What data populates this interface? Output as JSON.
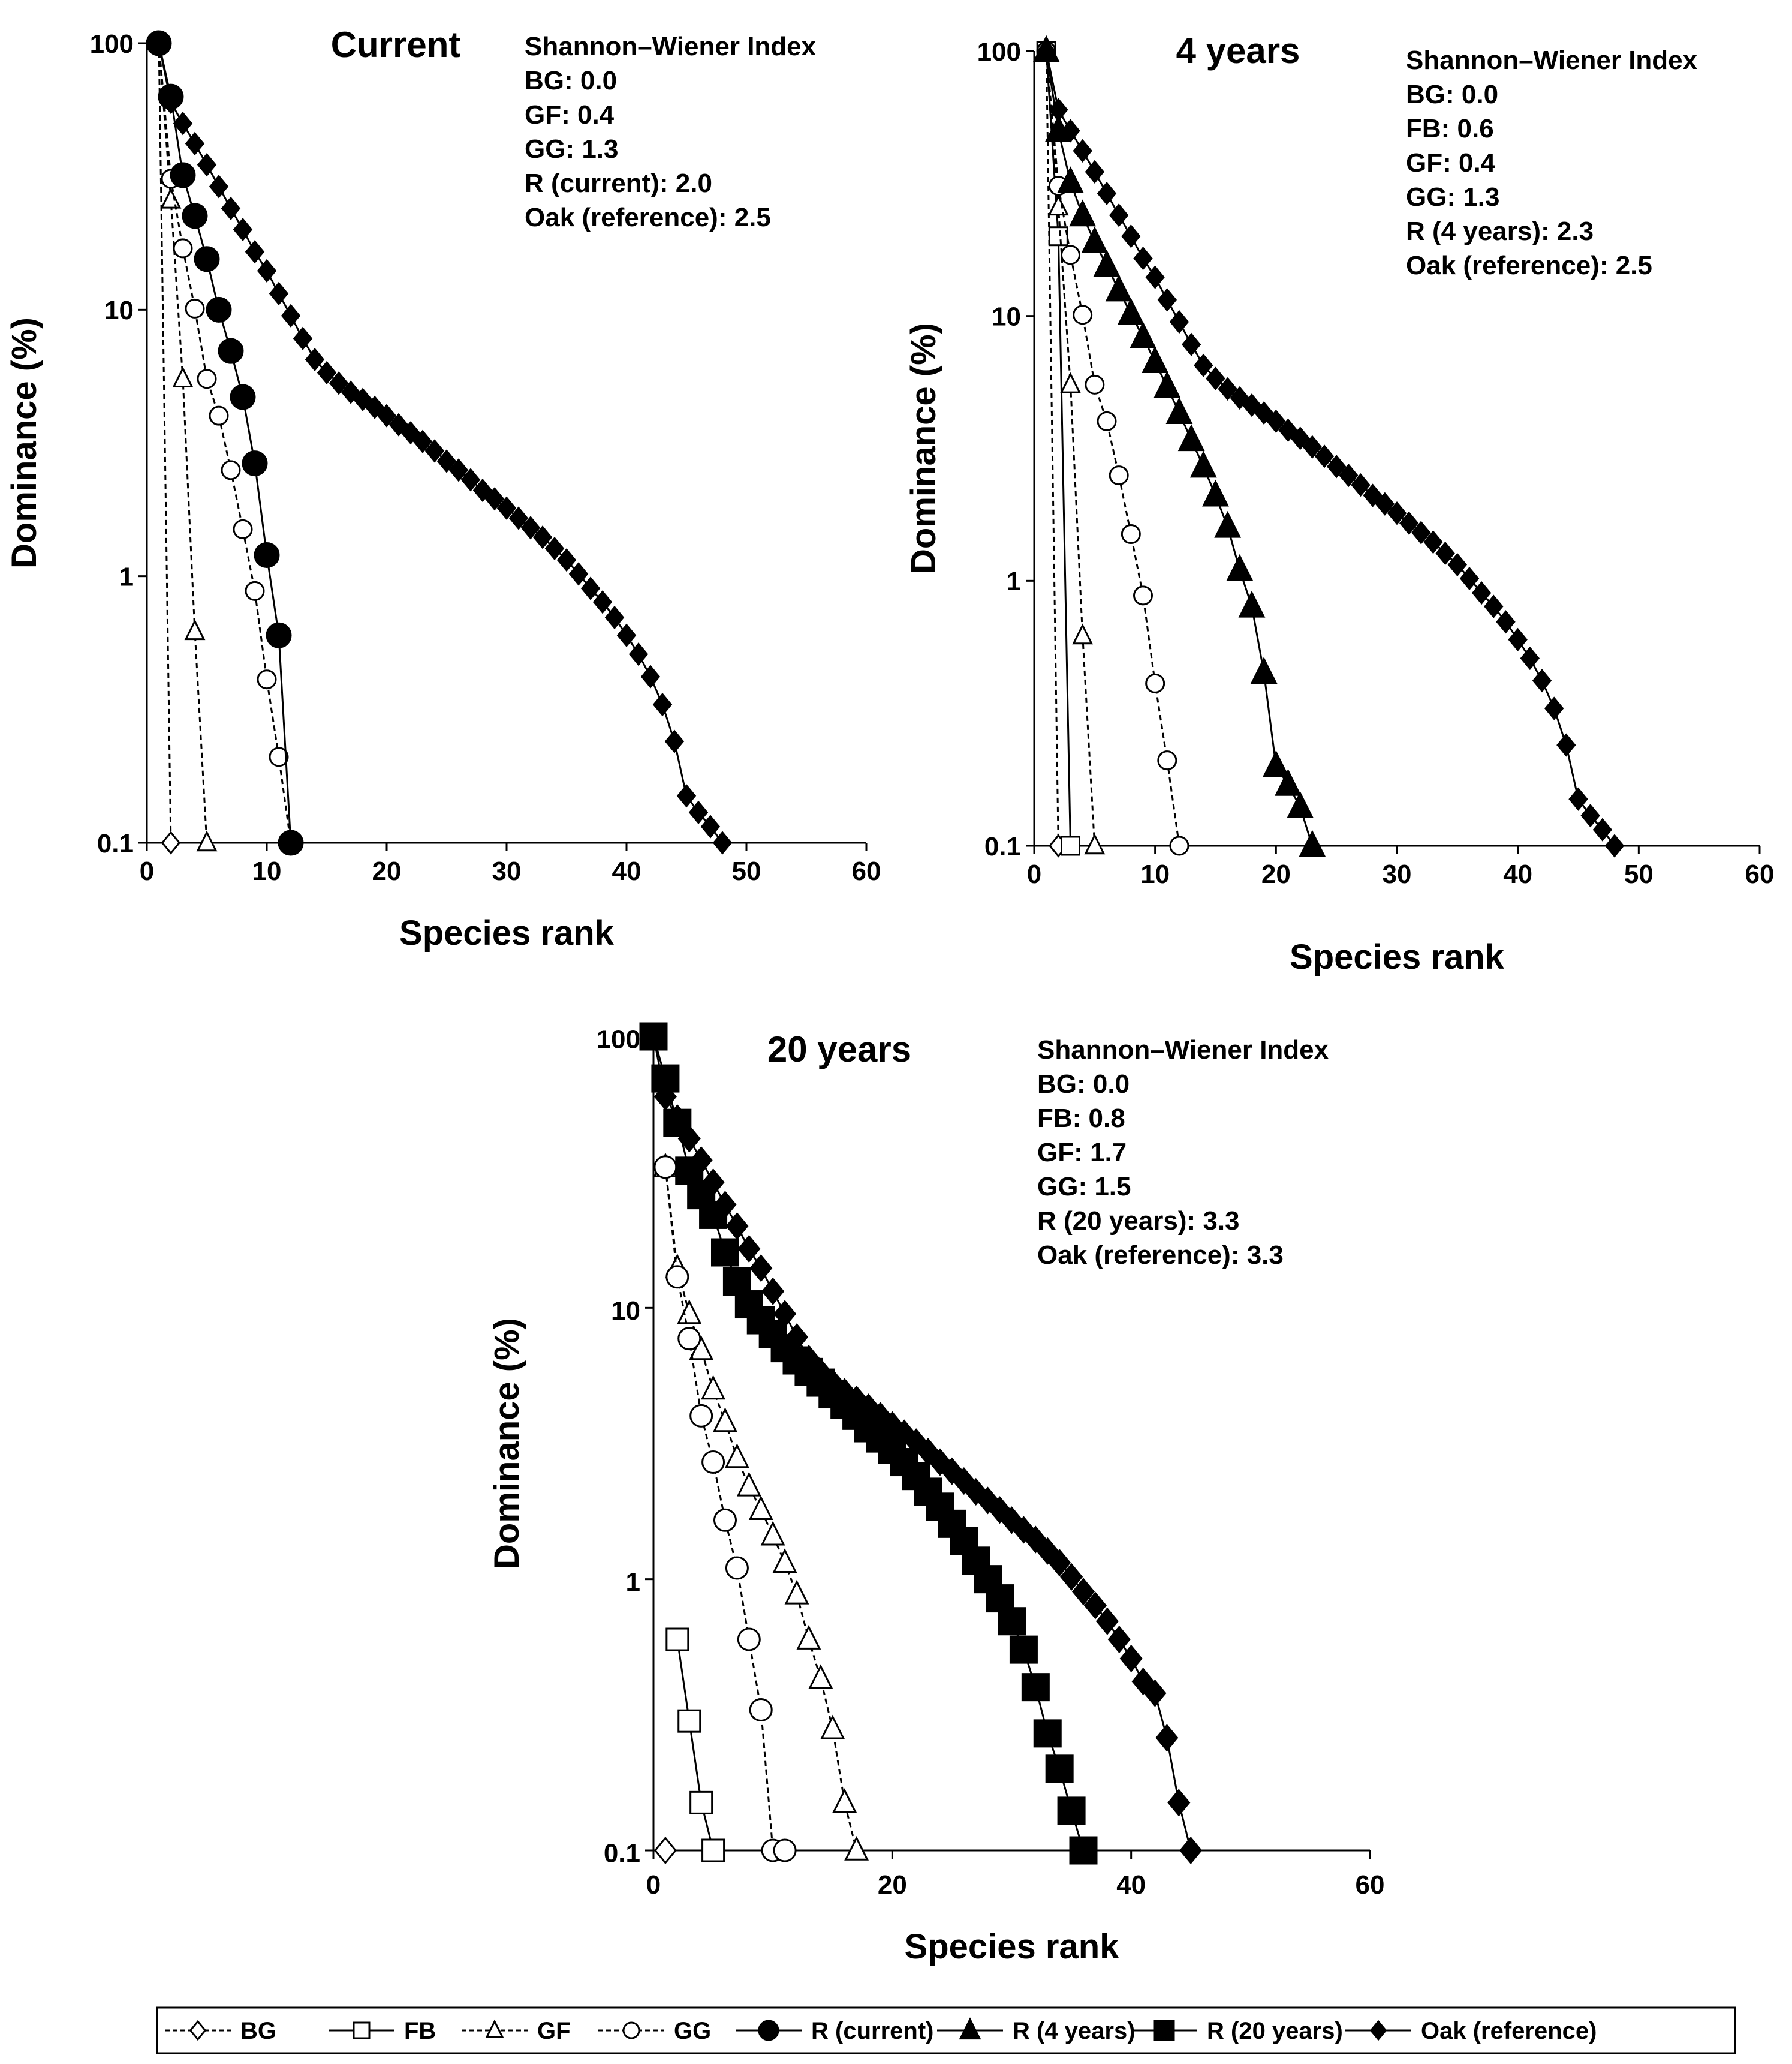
{
  "chart_data": [
    {
      "type": "line",
      "title": "Current",
      "xlabel": "Species rank",
      "ylabel": "Dominance (%)",
      "xlim": [
        0,
        60
      ],
      "ylim": [
        0.1,
        100
      ],
      "yscale": "log",
      "xticks": [
        "0",
        "10",
        "20",
        "30",
        "40",
        "50",
        "60"
      ],
      "yticks": [
        "0.1",
        "1",
        "10",
        "100"
      ],
      "stats_title": "Shannon–Wiener Index",
      "stats": [
        "BG: 0.0",
        "GF: 0.4",
        "GG: 1.3",
        "R (current): 2.0",
        "Oak (reference): 2.5"
      ],
      "series": [
        {
          "name": "BG",
          "x": [
            1,
            2
          ],
          "y": [
            100,
            0.1
          ]
        },
        {
          "name": "GF",
          "x": [
            1,
            2,
            3,
            4,
            5
          ],
          "y": [
            100,
            25.8,
            5.5,
            0.62,
            0.1
          ]
        },
        {
          "name": "GG",
          "x": [
            1,
            2,
            3,
            4,
            5,
            6,
            7,
            8,
            9,
            10,
            11,
            12
          ],
          "y": [
            100,
            31,
            17,
            10.1,
            5.5,
            4.0,
            2.5,
            1.5,
            0.88,
            0.41,
            0.21,
            0.1
          ]
        },
        {
          "name": "R (current)",
          "x": [
            1,
            2,
            3,
            4,
            5,
            6,
            7,
            8,
            9,
            10,
            11,
            12
          ],
          "y": [
            100,
            63,
            32,
            22.5,
            15.5,
            10,
            7,
            4.7,
            2.65,
            1.2,
            0.6,
            0.1
          ]
        },
        {
          "name": "Oak (reference)",
          "x": [
            1,
            2,
            3,
            4,
            5,
            6,
            7,
            8,
            9,
            10,
            11,
            12,
            13,
            14,
            15,
            16,
            17,
            18,
            19,
            20,
            21,
            22,
            23,
            24,
            25,
            26,
            27,
            28,
            29,
            30,
            31,
            32,
            33,
            34,
            35,
            36,
            37,
            38,
            39,
            40,
            41,
            42,
            43,
            44,
            45,
            46,
            47,
            48
          ],
          "y": [
            100,
            60,
            50,
            42,
            35,
            29,
            24,
            20,
            16.5,
            14,
            11.5,
            9.5,
            7.8,
            6.5,
            5.8,
            5.3,
            4.9,
            4.6,
            4.3,
            4.0,
            3.7,
            3.45,
            3.2,
            2.95,
            2.7,
            2.5,
            2.3,
            2.1,
            1.95,
            1.8,
            1.65,
            1.52,
            1.4,
            1.27,
            1.15,
            1.02,
            0.9,
            0.8,
            0.7,
            0.6,
            0.51,
            0.42,
            0.33,
            0.24,
            0.15,
            0.13,
            0.115,
            0.1
          ]
        }
      ]
    },
    {
      "type": "line",
      "title": "4 years",
      "xlabel": "Species rank",
      "ylabel": "Dominance (%)",
      "xlim": [
        0,
        60
      ],
      "ylim": [
        0.1,
        100
      ],
      "yscale": "log",
      "xticks": [
        "0",
        "10",
        "20",
        "30",
        "40",
        "50",
        "60"
      ],
      "yticks": [
        "0.1",
        "1",
        "10",
        "100"
      ],
      "stats_title": "Shannon–Wiener Index",
      "stats": [
        "BG: 0.0",
        "FB: 0.6",
        "GF: 0.4",
        "GG: 1.3",
        "R (4 years): 2.3",
        "Oak (reference): 2.5"
      ],
      "series": [
        {
          "name": "BG",
          "x": [
            1,
            2
          ],
          "y": [
            100,
            0.1
          ]
        },
        {
          "name": "FB",
          "x": [
            1,
            2,
            3
          ],
          "y": [
            100,
            20,
            0.1
          ]
        },
        {
          "name": "GF",
          "x": [
            1,
            2,
            3,
            4,
            5
          ],
          "y": [
            100,
            25.8,
            5.5,
            0.62,
            0.1
          ]
        },
        {
          "name": "GG",
          "x": [
            1,
            2,
            3,
            4,
            5,
            6,
            7,
            8,
            9,
            10,
            11,
            12
          ],
          "y": [
            100,
            31,
            17,
            10.1,
            5.5,
            4.0,
            2.5,
            1.5,
            0.88,
            0.41,
            0.21,
            0.1
          ]
        },
        {
          "name": "R (4 years)",
          "x": [
            1,
            2,
            3,
            4,
            5,
            6,
            7,
            8,
            9,
            10,
            11,
            12,
            13,
            14,
            15,
            16,
            17,
            18,
            19,
            20,
            21,
            22,
            23
          ],
          "y": [
            100,
            50,
            32,
            24,
            19,
            15.5,
            12.5,
            10.2,
            8.3,
            6.7,
            5.4,
            4.3,
            3.4,
            2.7,
            2.1,
            1.6,
            1.1,
            0.8,
            0.45,
            0.2,
            0.17,
            0.14,
            0.1
          ]
        },
        {
          "name": "Oak (reference)",
          "x": [
            1,
            2,
            3,
            4,
            5,
            6,
            7,
            8,
            9,
            10,
            11,
            12,
            13,
            14,
            15,
            16,
            17,
            18,
            19,
            20,
            21,
            22,
            23,
            24,
            25,
            26,
            27,
            28,
            29,
            30,
            31,
            32,
            33,
            34,
            35,
            36,
            37,
            38,
            39,
            40,
            41,
            42,
            43,
            44,
            45,
            46,
            47,
            48
          ],
          "y": [
            100,
            60,
            50,
            42,
            35,
            29,
            24,
            20,
            16.5,
            14,
            11.5,
            9.5,
            7.8,
            6.5,
            5.8,
            5.3,
            4.9,
            4.6,
            4.3,
            4.0,
            3.7,
            3.45,
            3.2,
            2.95,
            2.7,
            2.5,
            2.3,
            2.1,
            1.95,
            1.8,
            1.65,
            1.52,
            1.4,
            1.27,
            1.15,
            1.02,
            0.9,
            0.8,
            0.7,
            0.6,
            0.51,
            0.42,
            0.33,
            0.24,
            0.15,
            0.13,
            0.115,
            0.1
          ]
        }
      ]
    },
    {
      "type": "line",
      "title": "20 years",
      "xlabel": "Species rank",
      "ylabel": "Dominance (%)",
      "xlim": [
        0,
        60
      ],
      "ylim": [
        0.1,
        100
      ],
      "yscale": "log",
      "xticks": [
        "0",
        "20",
        "40",
        "60"
      ],
      "yticks": [
        "0.1",
        "1",
        "10",
        "100"
      ],
      "stats_title": "Shannon–Wiener Index",
      "stats": [
        "BG: 0.0",
        "FB: 0.8",
        "GF: 1.7",
        "GG: 1.5",
        "R (20 years): 3.3",
        "Oak (reference): 3.3"
      ],
      "series": [
        {
          "name": "BG",
          "x": [
            1
          ],
          "y": [
            0.1
          ]
        },
        {
          "name": "FB",
          "x": [
            2,
            3,
            4,
            5
          ],
          "y": [
            0.6,
            0.3,
            0.15,
            0.1
          ]
        },
        {
          "name": "GF",
          "x": [
            1,
            2,
            3,
            4,
            5,
            6,
            7,
            8,
            9,
            10,
            11,
            12,
            13,
            14,
            15,
            16,
            17
          ],
          "y": [
            33,
            14,
            9.5,
            7,
            5,
            3.8,
            2.8,
            2.2,
            1.8,
            1.45,
            1.15,
            0.88,
            0.6,
            0.43,
            0.28,
            0.15,
            0.1
          ]
        },
        {
          "name": "GG",
          "x": [
            1,
            2,
            3,
            4,
            5,
            6,
            7,
            8,
            9,
            10,
            11
          ],
          "y": [
            33,
            13,
            7.7,
            4,
            2.7,
            1.65,
            1.1,
            0.6,
            0.33,
            0.1,
            0.1
          ]
        },
        {
          "name": "R (20 years)",
          "x": [
            0,
            1,
            2,
            3,
            4,
            5,
            6,
            7,
            8,
            9,
            10,
            11,
            12,
            13,
            14,
            15,
            16,
            17,
            18,
            19,
            20,
            21,
            22,
            23,
            24,
            25,
            26,
            27,
            28,
            29,
            30,
            31,
            32,
            33,
            34,
            35,
            36
          ],
          "y": [
            100,
            70,
            48,
            32,
            26,
            22,
            16,
            12.5,
            10.3,
            9,
            8,
            7.1,
            6.4,
            5.8,
            5.3,
            4.8,
            4.4,
            4.0,
            3.6,
            3.3,
            3.0,
            2.7,
            2.4,
            2.1,
            1.85,
            1.6,
            1.38,
            1.17,
            1.0,
            0.85,
            0.7,
            0.55,
            0.4,
            0.27,
            0.2,
            0.14,
            0.1
          ]
        },
        {
          "name": "Oak (reference)",
          "x": [
            0,
            1,
            2,
            3,
            4,
            5,
            6,
            7,
            8,
            9,
            10,
            11,
            12,
            13,
            14,
            15,
            16,
            17,
            18,
            19,
            20,
            21,
            22,
            23,
            24,
            25,
            26,
            27,
            28,
            29,
            30,
            31,
            32,
            33,
            34,
            35,
            36,
            37,
            38,
            39,
            40,
            41,
            42,
            43,
            44,
            45
          ],
          "y": [
            100,
            60,
            50,
            42,
            35,
            29,
            24,
            20,
            16.5,
            14,
            11.5,
            9.5,
            7.8,
            6.5,
            5.8,
            5.3,
            4.9,
            4.6,
            4.3,
            4.0,
            3.7,
            3.45,
            3.2,
            2.95,
            2.7,
            2.5,
            2.3,
            2.1,
            1.95,
            1.8,
            1.65,
            1.52,
            1.4,
            1.27,
            1.15,
            1.02,
            0.9,
            0.8,
            0.7,
            0.6,
            0.51,
            0.42,
            0.38,
            0.26,
            0.15,
            0.1
          ]
        }
      ]
    }
  ],
  "legend": [
    {
      "name": "BG",
      "marker": "diamond-open",
      "dash": "dashed"
    },
    {
      "name": "FB",
      "marker": "square-open",
      "dash": "solid"
    },
    {
      "name": "GF",
      "marker": "triangle-open",
      "dash": "dashed"
    },
    {
      "name": "GG",
      "marker": "circle-open",
      "dash": "dashed"
    },
    {
      "name": "R (current)",
      "marker": "circle-filled",
      "dash": "solid"
    },
    {
      "name": "R (4 years)",
      "marker": "triangle-filled",
      "dash": "solid"
    },
    {
      "name": "R (20 years)",
      "marker": "square-filled",
      "dash": "solid"
    },
    {
      "name": "Oak (reference)",
      "marker": "diamond-filled",
      "dash": "solid"
    }
  ],
  "styles": {
    "BG": {
      "marker": "diamond-open",
      "dash": "dashed"
    },
    "FB": {
      "marker": "square-open",
      "dash": "solid"
    },
    "GF": {
      "marker": "triangle-open",
      "dash": "dashed"
    },
    "GG": {
      "marker": "circle-open",
      "dash": "dashed"
    },
    "R (current)": {
      "marker": "circle-filled",
      "dash": "solid"
    },
    "R (4 years)": {
      "marker": "triangle-filled",
      "dash": "solid"
    },
    "R (20 years)": {
      "marker": "square-filled",
      "dash": "solid"
    },
    "Oak (reference)": {
      "marker": "diamond-filled",
      "dash": "solid"
    }
  },
  "colors": {
    "ink": "#000000",
    "background": "#ffffff"
  }
}
